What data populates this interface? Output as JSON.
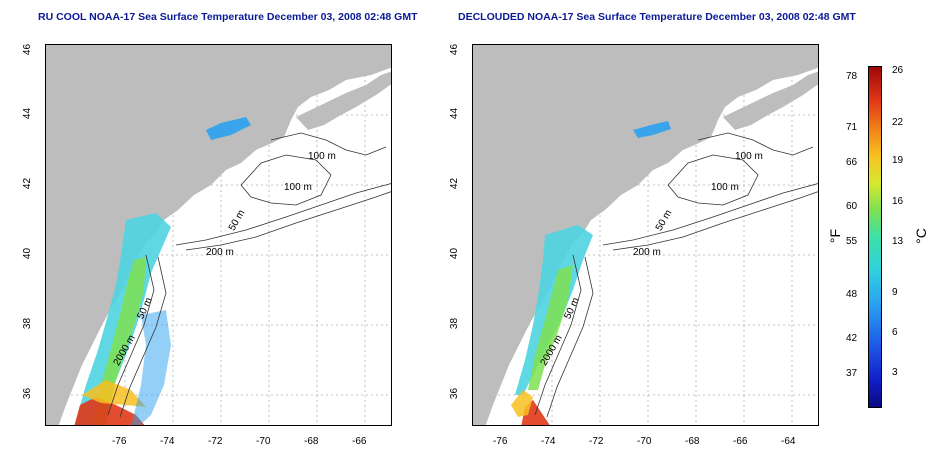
{
  "left_panel": {
    "title": "RU COOL NOAA-17 Sea Surface Temperature December 03, 2008 02:48 GMT",
    "contour_labels": [
      "100 m",
      "100 m",
      "50 m",
      "200 m",
      "50 m",
      "2000 m"
    ]
  },
  "right_panel": {
    "title": "DECLOUDED NOAA-17 Sea Surface Temperature December 03, 2008 02:48 GMT",
    "contour_labels": [
      "100 m",
      "100 m",
      "50 m",
      "200 m",
      "50 m",
      "2000 m"
    ]
  },
  "axes": {
    "lon_ticks": [
      "-76",
      "-74",
      "-72",
      "-70",
      "-68",
      "-66",
      "-64"
    ],
    "lat_ticks": [
      "36",
      "38",
      "40",
      "42",
      "44",
      "46"
    ]
  },
  "colorbar": {
    "fahrenheit_ticks": [
      "78",
      "71",
      "66",
      "60",
      "55",
      "48",
      "42",
      "37"
    ],
    "celsius_ticks": [
      "26",
      "22",
      "19",
      "16",
      "13",
      "9",
      "6",
      "3"
    ],
    "unit_f": "°F",
    "unit_c": "°C"
  },
  "colors": {
    "land": "#bdbdbd",
    "title": "#0a1a96",
    "grid": "#b0b0b0"
  }
}
